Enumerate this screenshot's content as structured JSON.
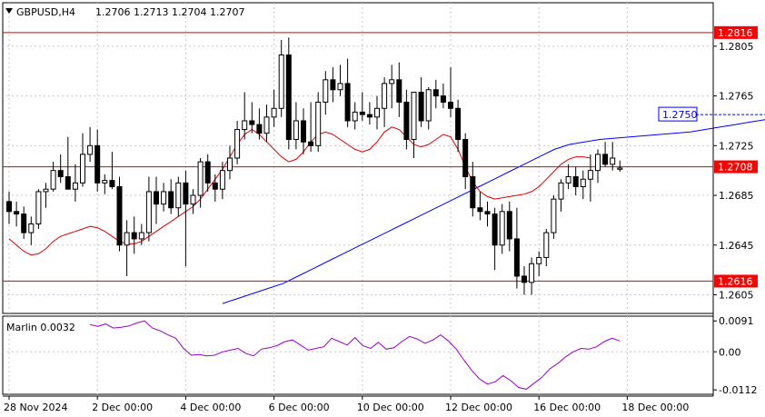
{
  "header": {
    "symbol_timeframe": "GBPUSD,H4",
    "ohlc": "1.2706 1.2713 1.2704 1.2707"
  },
  "indicator": {
    "label": "Marlin 0.0032"
  },
  "colors": {
    "background": "#ffffff",
    "candle": "#000000",
    "level_line": "#e00000",
    "level_badge": "#ff0000",
    "ma_fast": "#e00000",
    "ma_slow": "#0000ff",
    "oscillator": "#9900cc",
    "grid": "#c8c8c8"
  },
  "chart_data": {
    "type": "candlestick",
    "title": "",
    "y_range": [
      1.259,
      1.284
    ],
    "y_ticks": [
      "1.2805",
      "1.2765",
      "1.2725",
      "1.2685",
      "1.2645",
      "1.2605"
    ],
    "x_ticks": [
      "28 Nov 2024",
      "2 Dec 00:00",
      "4 Dec 00:00",
      "6 Dec 00:00",
      "10 Dec 00:00",
      "12 Dec 00:00",
      "16 Dec 00:00",
      "18 Dec 00:00"
    ],
    "levels": [
      {
        "value": 1.2816,
        "label": "1.2816"
      },
      {
        "value": 1.2708,
        "label": "1.2708"
      },
      {
        "value": 1.2616,
        "label": "1.2616"
      }
    ],
    "ma_slow_last": {
      "value": 1.275,
      "label": "1.2750"
    },
    "candles": [
      [
        1.268,
        1.2688,
        1.2662,
        1.2672
      ],
      [
        1.2672,
        1.268,
        1.266,
        1.267
      ],
      [
        1.267,
        1.2676,
        1.265,
        1.2655
      ],
      [
        1.2655,
        1.2668,
        1.2645,
        1.2662
      ],
      [
        1.2662,
        1.269,
        1.2658,
        1.2688
      ],
      [
        1.2688,
        1.2695,
        1.2675,
        1.269
      ],
      [
        1.269,
        1.2712,
        1.2688,
        1.2705
      ],
      [
        1.2705,
        1.2718,
        1.2695,
        1.27
      ],
      [
        1.27,
        1.2732,
        1.2692,
        1.269
      ],
      [
        1.269,
        1.271,
        1.268,
        1.2695
      ],
      [
        1.2695,
        1.2735,
        1.2692,
        1.2718
      ],
      [
        1.2718,
        1.274,
        1.2712,
        1.2725
      ],
      [
        1.2725,
        1.2738,
        1.2688,
        1.2695
      ],
      [
        1.2695,
        1.2702,
        1.2686,
        1.2697
      ],
      [
        1.2697,
        1.272,
        1.269,
        1.2692
      ],
      [
        1.2692,
        1.27,
        1.264,
        1.2645
      ],
      [
        1.2645,
        1.2665,
        1.262,
        1.2655
      ],
      [
        1.2655,
        1.2668,
        1.2638,
        1.265
      ],
      [
        1.265,
        1.2662,
        1.2645,
        1.2655
      ],
      [
        1.2655,
        1.27,
        1.2648,
        1.2688
      ],
      [
        1.2688,
        1.27,
        1.2662,
        1.2678
      ],
      [
        1.2678,
        1.2695,
        1.2672,
        1.2688
      ],
      [
        1.2688,
        1.2698,
        1.267,
        1.2675
      ],
      [
        1.2675,
        1.27,
        1.2668,
        1.2695
      ],
      [
        1.2695,
        1.2705,
        1.2628,
        1.2678
      ],
      [
        1.2678,
        1.269,
        1.267,
        1.2685
      ],
      [
        1.2685,
        1.2715,
        1.2675,
        1.2712
      ],
      [
        1.2712,
        1.2718,
        1.2688,
        1.2695
      ],
      [
        1.2695,
        1.2702,
        1.268,
        1.269
      ],
      [
        1.269,
        1.2712,
        1.2682,
        1.2705
      ],
      [
        1.2705,
        1.2725,
        1.2698,
        1.2715
      ],
      [
        1.2715,
        1.2745,
        1.271,
        1.2738
      ],
      [
        1.2738,
        1.2768,
        1.273,
        1.2745
      ],
      [
        1.2745,
        1.276,
        1.2735,
        1.2742
      ],
      [
        1.2742,
        1.2755,
        1.273,
        1.2735
      ],
      [
        1.2735,
        1.2758,
        1.2728,
        1.2748
      ],
      [
        1.2748,
        1.277,
        1.274,
        1.2755
      ],
      [
        1.2755,
        1.281,
        1.2748,
        1.2798
      ],
      [
        1.2798,
        1.2812,
        1.2722,
        1.273
      ],
      [
        1.273,
        1.276,
        1.2722,
        1.2745
      ],
      [
        1.2745,
        1.2755,
        1.2718,
        1.2728
      ],
      [
        1.2728,
        1.276,
        1.272,
        1.2725
      ],
      [
        1.2725,
        1.2768,
        1.272,
        1.276
      ],
      [
        1.276,
        1.2785,
        1.275,
        1.2778
      ],
      [
        1.2778,
        1.2788,
        1.276,
        1.277
      ],
      [
        1.277,
        1.279,
        1.2765,
        1.2775
      ],
      [
        1.2775,
        1.2795,
        1.274,
        1.2745
      ],
      [
        1.2745,
        1.276,
        1.2738,
        1.2752
      ],
      [
        1.2752,
        1.2768,
        1.2745,
        1.275
      ],
      [
        1.275,
        1.276,
        1.2742,
        1.2748
      ],
      [
        1.2748,
        1.2765,
        1.2738,
        1.2755
      ],
      [
        1.2755,
        1.278,
        1.274,
        1.2775
      ],
      [
        1.2775,
        1.279,
        1.2755,
        1.2778
      ],
      [
        1.2778,
        1.2792,
        1.2748,
        1.276
      ],
      [
        1.276,
        1.277,
        1.2722,
        1.273
      ],
      [
        1.273,
        1.2768,
        1.2715,
        1.2768
      ],
      [
        1.2768,
        1.278,
        1.274,
        1.2745
      ],
      [
        1.2745,
        1.2772,
        1.2738,
        1.277
      ],
      [
        1.277,
        1.2778,
        1.2755,
        1.2765
      ],
      [
        1.2765,
        1.2775,
        1.2755,
        1.276
      ],
      [
        1.276,
        1.2788,
        1.2748,
        1.2755
      ],
      [
        1.2755,
        1.2762,
        1.272,
        1.273
      ],
      [
        1.273,
        1.2735,
        1.269,
        1.27
      ],
      [
        1.27,
        1.2712,
        1.2668,
        1.2675
      ],
      [
        1.2675,
        1.2688,
        1.2665,
        1.2672
      ],
      [
        1.2672,
        1.268,
        1.266,
        1.267
      ],
      [
        1.267,
        1.2675,
        1.2625,
        1.2645
      ],
      [
        1.2645,
        1.2678,
        1.2638,
        1.2672
      ],
      [
        1.2672,
        1.268,
        1.264,
        1.265
      ],
      [
        1.265,
        1.2675,
        1.261,
        1.262
      ],
      [
        1.262,
        1.2628,
        1.2605,
        1.2615
      ],
      [
        1.2615,
        1.2635,
        1.2605,
        1.263
      ],
      [
        1.263,
        1.264,
        1.262,
        1.2635
      ],
      [
        1.2635,
        1.2658,
        1.2628,
        1.2655
      ],
      [
        1.2655,
        1.2685,
        1.265,
        1.2682
      ],
      [
        1.2682,
        1.2698,
        1.2672,
        1.2695
      ],
      [
        1.2695,
        1.271,
        1.269,
        1.27
      ],
      [
        1.27,
        1.2708,
        1.2685,
        1.2692
      ],
      [
        1.2692,
        1.2705,
        1.2682,
        1.2698
      ],
      [
        1.2698,
        1.2718,
        1.268,
        1.2705
      ],
      [
        1.2705,
        1.2722,
        1.2695,
        1.2718
      ],
      [
        1.2718,
        1.2728,
        1.2708,
        1.271
      ],
      [
        1.271,
        1.2728,
        1.2705,
        1.2715
      ],
      [
        1.2706,
        1.2713,
        1.2704,
        1.2707
      ]
    ],
    "ma_fast": [
      1.265,
      1.2645,
      1.264,
      1.2637,
      1.2638,
      1.2642,
      1.2648,
      1.2652,
      1.2654,
      1.2656,
      1.2658,
      1.266,
      1.2659,
      1.2656,
      1.2652,
      1.2648,
      1.2646,
      1.2646,
      1.2648,
      1.2652,
      1.2656,
      1.266,
      1.2664,
      1.2668,
      1.2672,
      1.2676,
      1.2682,
      1.269,
      1.2698,
      1.2706,
      1.2716,
      1.2726,
      1.2734,
      1.2738,
      1.2734,
      1.2728,
      1.2722,
      1.2716,
      1.2712,
      1.2714,
      1.272,
      1.2728,
      1.2734,
      1.2736,
      1.2734,
      1.273,
      1.2726,
      1.2722,
      1.272,
      1.2722,
      1.2728,
      1.2736,
      1.274,
      1.2738,
      1.2732,
      1.2726,
      1.2724,
      1.2726,
      1.273,
      1.2734,
      1.2732,
      1.2722,
      1.2708,
      1.2696,
      1.2688,
      1.2684,
      1.2682,
      1.2683,
      1.2684,
      1.2685,
      1.2686,
      1.2688,
      1.2692,
      1.2698,
      1.2704,
      1.271,
      1.2714,
      1.2716,
      1.2716,
      1.2715
    ],
    "ma_slow": [
      1.2598,
      1.2602,
      1.2606,
      1.261,
      1.2614,
      1.262,
      1.2626,
      1.2632,
      1.2638,
      1.2644,
      1.265,
      1.2656,
      1.2662,
      1.2668,
      1.2674,
      1.268,
      1.2686,
      1.2692,
      1.2698,
      1.2704,
      1.271,
      1.2716,
      1.2722,
      1.2726,
      1.2728,
      1.273,
      1.2731,
      1.2732,
      1.2733,
      1.2734,
      1.2735,
      1.2736,
      1.2738,
      1.274,
      1.2742,
      1.2744,
      1.2746,
      1.2747,
      1.2748,
      1.2749,
      1.275
    ],
    "oscillator": {
      "name": "Marlin",
      "value_label": "0.0032",
      "y_range": [
        -0.0125,
        0.0105
      ],
      "ticks": [
        "0.0091",
        "0.00",
        "-0.0112"
      ],
      "values": [
        0.008,
        0.0075,
        0.0082,
        0.007,
        0.0072,
        0.0076,
        0.0085,
        0.0091,
        0.007,
        0.0062,
        0.005,
        0.004,
        0.001,
        -0.001,
        -0.0008,
        -0.0012,
        -0.001,
        0.0,
        0.0005,
        0.001,
        -0.0005,
        -0.0012,
        0.0008,
        0.0012,
        0.0018,
        0.003,
        0.0035,
        0.002,
        0.0005,
        0.001,
        0.0015,
        0.004,
        0.003,
        0.002,
        0.0042,
        0.0018,
        0.001,
        0.0028,
        0.0008,
        0.0012,
        0.003,
        0.0045,
        0.0038,
        0.0025,
        0.0035,
        0.005,
        0.0032,
        0.0008,
        -0.0025,
        -0.0055,
        -0.008,
        -0.0095,
        -0.0088,
        -0.007,
        -0.0085,
        -0.0105,
        -0.011,
        -0.0092,
        -0.0075,
        -0.005,
        -0.0035,
        -0.0015,
        0.0,
        0.001,
        0.0008,
        0.0015,
        0.003,
        0.004,
        0.0032
      ]
    }
  }
}
